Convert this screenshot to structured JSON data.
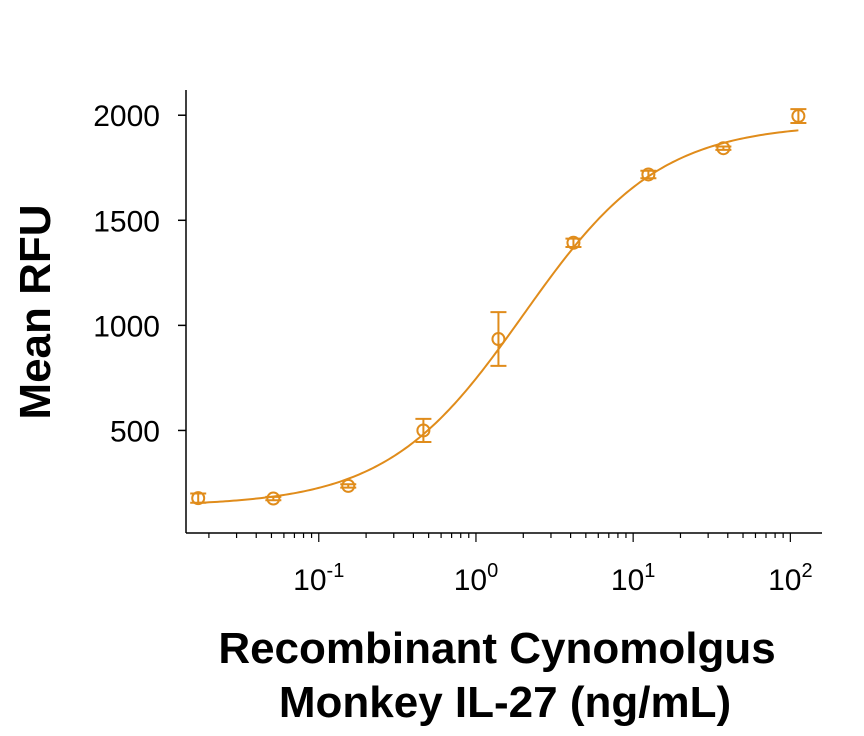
{
  "chart_data": {
    "type": "scatter",
    "title": "",
    "xlabel_lines": [
      "Recombinant Cynomolgus",
      "Monkey IL-27 (ng/mL)"
    ],
    "ylabel": "Mean RFU",
    "x_scale": "log10",
    "xlim": [
      0.0143,
      159
    ],
    "ylim": [
      12,
      2120
    ],
    "yticks": [
      {
        "value": 500,
        "label": "500"
      },
      {
        "value": 1000,
        "label": "1000"
      },
      {
        "value": 1500,
        "label": "1500"
      },
      {
        "value": 2000,
        "label": "2000"
      }
    ],
    "xticks": [
      {
        "value": 0.1,
        "base": "10",
        "exp": "-1"
      },
      {
        "value": 1,
        "base": "10",
        "exp": "0"
      },
      {
        "value": 10,
        "base": "10",
        "exp": "1"
      },
      {
        "value": 100,
        "base": "10",
        "exp": "2"
      }
    ],
    "grid": false,
    "color": "#E08C1B",
    "series": [
      {
        "name": "",
        "marker": "open-circle",
        "points": [
          {
            "x": 0.0171,
            "y": 178,
            "err": 22
          },
          {
            "x": 0.0514,
            "y": 176,
            "err": 8
          },
          {
            "x": 0.154,
            "y": 236,
            "err": 8
          },
          {
            "x": 0.463,
            "y": 500,
            "err": 55
          },
          {
            "x": 1.39,
            "y": 935,
            "err": 128
          },
          {
            "x": 4.17,
            "y": 1393,
            "err": 20
          },
          {
            "x": 12.5,
            "y": 1718,
            "err": 18
          },
          {
            "x": 37.5,
            "y": 1843,
            "err": 8
          },
          {
            "x": 112.5,
            "y": 1996,
            "err": 33
          }
        ]
      }
    ],
    "fit_curve": {
      "bottom": 140,
      "top": 1960,
      "ec50": 2.0,
      "hill": 1.0
    }
  }
}
